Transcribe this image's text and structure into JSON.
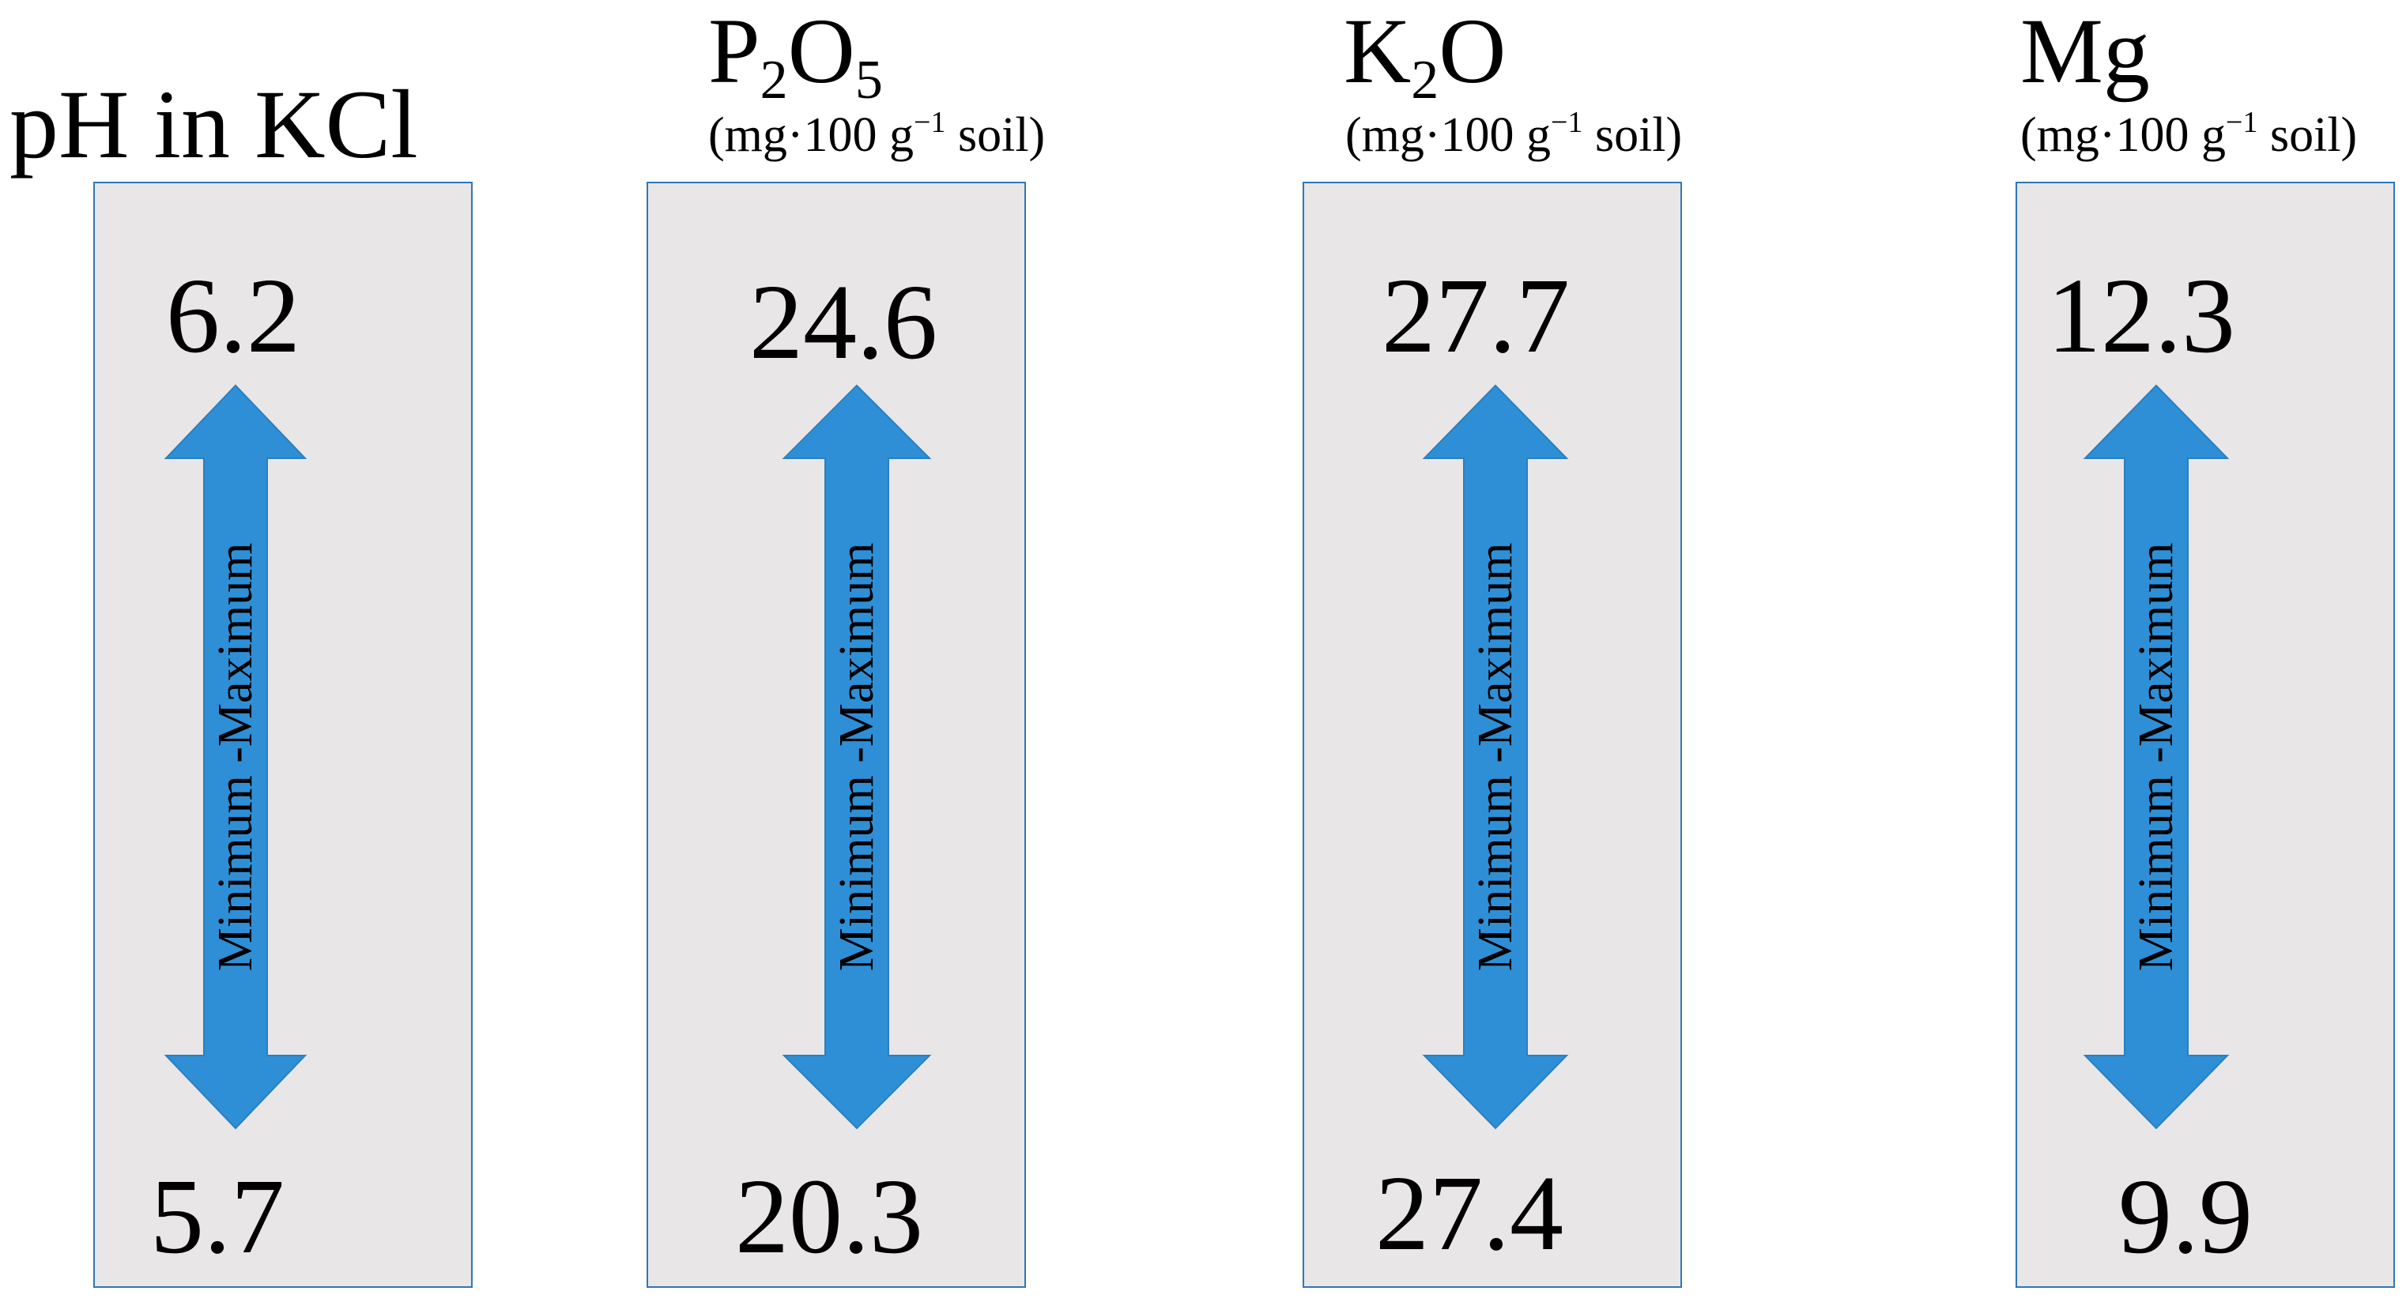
{
  "range_label": "Minimum -Maximum",
  "arrow_color": "#2e8fd6",
  "box_fill": "#e8e6e7",
  "panels": [
    {
      "title_text": "pH in KCl",
      "unit_before": "",
      "unit_exp": "",
      "unit_after": "",
      "max": "6.2",
      "min": "5.7"
    },
    {
      "title_main": "P",
      "title_sub1": "2",
      "title_mid": "O",
      "title_sub2": "5",
      "unit_before": "(mg·100 g",
      "unit_exp": "−1",
      "unit_after": " soil)",
      "max": "24.6",
      "min": "20.3"
    },
    {
      "title_main": "K",
      "title_sub1": "2",
      "title_mid": "O",
      "title_sub2": "",
      "unit_before": "(mg·100 g",
      "unit_exp": "−1",
      "unit_after": " soil)",
      "max": "27.7",
      "min": "27.4"
    },
    {
      "title_text": "Mg",
      "unit_before": "(mg·100 g",
      "unit_exp": "−1",
      "unit_after": " soil)",
      "max": "12.3",
      "min": "9.9"
    }
  ]
}
